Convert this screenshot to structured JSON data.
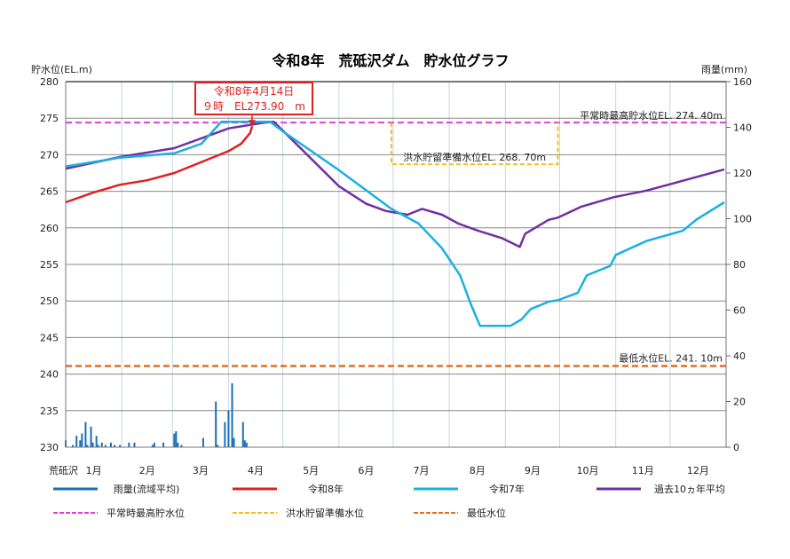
{
  "chart_data": {
    "type": "line",
    "title": "令和8年　荒砥沢ダム　貯水位グラフ",
    "ylabel": "貯水位(EL.m)",
    "y2label": "雨量(mm)",
    "ylim": [
      230,
      280
    ],
    "yticks": [
      230,
      235,
      240,
      245,
      250,
      255,
      260,
      265,
      270,
      275,
      280
    ],
    "y2lim": [
      0,
      160
    ],
    "y2ticks": [
      0,
      20,
      40,
      60,
      80,
      100,
      120,
      140,
      160
    ],
    "x_axis_name": "荒砥沢",
    "xticks": [
      "1月",
      "2月",
      "3月",
      "4月",
      "5月",
      "6月",
      "7月",
      "8月",
      "9月",
      "10月",
      "11月",
      "12月"
    ],
    "grid": true,
    "colors": {
      "rain": "#1a6fb5",
      "r8": "#e02020",
      "r7": "#1ab0e0",
      "avg": "#7030a0",
      "normal_max": "#e040d0",
      "flood_prep": "#f0c020",
      "min": "#e07020"
    },
    "series": [
      {
        "name": "令和8年",
        "key": "r8",
        "points": [
          [
            "1/1",
            263.5
          ],
          [
            "1/16",
            264.8
          ],
          [
            "1/31",
            265.9
          ],
          [
            "2/15",
            266.5
          ],
          [
            "3/2",
            267.5
          ],
          [
            "3/17",
            269.0
          ],
          [
            "4/1",
            270.5
          ],
          [
            "4/8",
            271.5
          ],
          [
            "4/13",
            273.0
          ],
          [
            "4/14",
            273.9
          ]
        ]
      },
      {
        "name": "令和7年",
        "key": "r7",
        "points": [
          [
            "1/1",
            268.4
          ],
          [
            "1/31",
            269.6
          ],
          [
            "3/2",
            270.2
          ],
          [
            "3/17",
            271.5
          ],
          [
            "3/28",
            274.5
          ],
          [
            "4/24",
            274.5
          ],
          [
            "5/1",
            273.2
          ],
          [
            "6/1",
            267.9
          ],
          [
            "6/30",
            262.6
          ],
          [
            "7/15",
            260.6
          ],
          [
            "7/28",
            257.2
          ],
          [
            "8/7",
            253.5
          ],
          [
            "8/13",
            249.5
          ],
          [
            "8/18",
            246.6
          ],
          [
            "9/4",
            246.6
          ],
          [
            "9/10",
            247.5
          ],
          [
            "9/15",
            248.9
          ],
          [
            "9/25",
            249.9
          ],
          [
            "9/30",
            250.1
          ],
          [
            "10/11",
            251.1
          ],
          [
            "10/16",
            253.5
          ],
          [
            "10/29",
            254.8
          ],
          [
            "11/1",
            256.3
          ],
          [
            "11/18",
            258.2
          ],
          [
            "12/8",
            259.6
          ],
          [
            "12/16",
            261.2
          ],
          [
            "12/31",
            263.5
          ]
        ]
      },
      {
        "name": "過去10ヵ年平均",
        "key": "avg",
        "points": [
          [
            "1/1",
            268.1
          ],
          [
            "1/31",
            269.7
          ],
          [
            "3/2",
            270.9
          ],
          [
            "4/1",
            273.6
          ],
          [
            "4/21",
            274.4
          ],
          [
            "4/26",
            274.5
          ],
          [
            "5/1",
            273.3
          ],
          [
            "6/1",
            265.7
          ],
          [
            "6/16",
            263.3
          ],
          [
            "6/27",
            262.3
          ],
          [
            "7/9",
            261.8
          ],
          [
            "7/17",
            262.6
          ],
          [
            "7/28",
            261.8
          ],
          [
            "8/6",
            260.6
          ],
          [
            "8/17",
            259.6
          ],
          [
            "8/30",
            258.6
          ],
          [
            "9/9",
            257.4
          ],
          [
            "9/12",
            259.2
          ],
          [
            "9/25",
            261.1
          ],
          [
            "9/30",
            261.4
          ],
          [
            "10/13",
            262.9
          ],
          [
            "10/31",
            264.2
          ],
          [
            "11/18",
            265.1
          ],
          [
            "12/9",
            266.5
          ],
          [
            "12/31",
            268.0
          ]
        ]
      }
    ],
    "rain": {
      "name": "雨量(流域平均)",
      "key": "rain",
      "points": [
        [
          "1/1",
          3
        ],
        [
          "1/5",
          1
        ],
        [
          "1/7",
          5
        ],
        [
          "1/9",
          3
        ],
        [
          "1/10",
          6
        ],
        [
          "1/12",
          11
        ],
        [
          "1/13",
          1
        ],
        [
          "1/15",
          9
        ],
        [
          "1/16",
          2
        ],
        [
          "1/18",
          5
        ],
        [
          "1/19",
          1
        ],
        [
          "1/21",
          2
        ],
        [
          "1/23",
          1
        ],
        [
          "1/26",
          2
        ],
        [
          "1/28",
          1
        ],
        [
          "1/31",
          1
        ],
        [
          "2/5",
          2
        ],
        [
          "2/8",
          2
        ],
        [
          "2/18",
          1
        ],
        [
          "2/19",
          2
        ],
        [
          "2/24",
          2
        ],
        [
          "3/2",
          6
        ],
        [
          "3/3",
          7
        ],
        [
          "3/4",
          2
        ],
        [
          "3/6",
          1
        ],
        [
          "3/18",
          4
        ],
        [
          "3/25",
          20
        ],
        [
          "3/26",
          1
        ],
        [
          "3/30",
          11
        ],
        [
          "4/1",
          16
        ],
        [
          "4/3",
          28
        ],
        [
          "4/4",
          4
        ],
        [
          "4/9",
          11
        ],
        [
          "4/10",
          3
        ],
        [
          "4/11",
          2
        ]
      ]
    },
    "reference_lines": [
      {
        "name": "平常時最高貯水位",
        "key": "normal_max",
        "value": 274.4,
        "label": "平常時最高貯水位EL. 274. 40m"
      },
      {
        "name": "洪水貯留準備水位",
        "key": "flood_prep",
        "value": 268.7,
        "from": "6/30",
        "to": "9/30",
        "label": "洪水貯留準備水位EL. 268. 70m"
      },
      {
        "name": "最低水位",
        "key": "min",
        "value": 241.1,
        "label": "最低水位EL. 241. 10m"
      }
    ],
    "annotation": {
      "date": "4/14",
      "value": 273.9,
      "line1": "令和8年4月14日",
      "line2": "９時　EL273.90　m"
    }
  },
  "legend": [
    {
      "key": "rain",
      "label": "雨量(流域平均)",
      "dashed": false
    },
    {
      "key": "r8",
      "label": "令和8年",
      "dashed": false
    },
    {
      "key": "r7",
      "label": "令和7年",
      "dashed": false
    },
    {
      "key": "avg",
      "label": "過去10ヵ年平均",
      "dashed": false
    },
    {
      "key": "normal_max",
      "label": "平常時最高貯水位",
      "dashed": true
    },
    {
      "key": "flood_prep",
      "label": "洪水貯留準備水位",
      "dashed": true
    },
    {
      "key": "min",
      "label": "最低水位",
      "dashed": true
    }
  ]
}
